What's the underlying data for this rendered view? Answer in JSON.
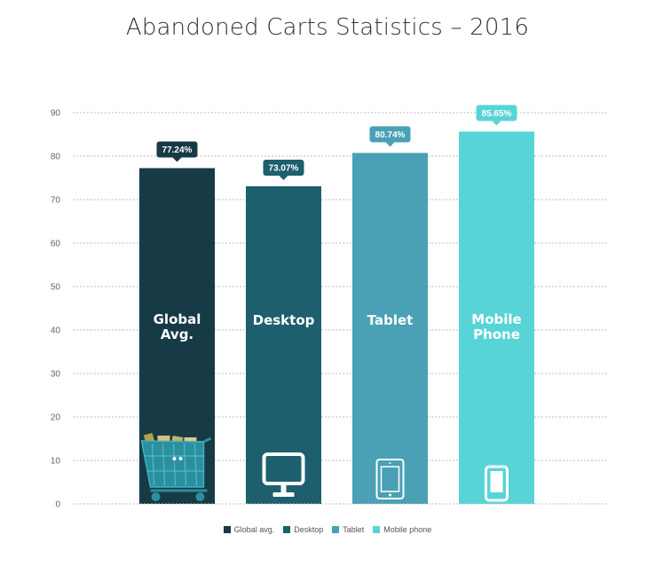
{
  "title": "Abandoned Carts Statistics – 2016",
  "chart_data": {
    "type": "bar",
    "title": "Abandoned Carts Statistics – 2016",
    "xlabel": "",
    "ylabel": "",
    "ylim": [
      0,
      90
    ],
    "yticks": [
      0,
      10,
      20,
      30,
      40,
      50,
      60,
      70,
      80,
      90
    ],
    "grid": true,
    "legend_position": "bottom",
    "categories": [
      "Global avg.",
      "Desktop",
      "Tablet",
      "Mobile phone"
    ],
    "bar_labels": [
      [
        "Global",
        "Avg."
      ],
      [
        "Desktop"
      ],
      [
        "Tablet"
      ],
      [
        "Mobile",
        "Phone"
      ]
    ],
    "values": [
      77.24,
      73.07,
      80.74,
      85.65
    ],
    "value_labels": [
      "77.24%",
      "73.07%",
      "80.74%",
      "85.65%"
    ],
    "colors": [
      "#163a46",
      "#1e5f6e",
      "#4aa0b5",
      "#59d4d6"
    ],
    "icons": [
      "shopping-cart-icon",
      "desktop-monitor-icon",
      "tablet-icon",
      "mobile-phone-icon"
    ]
  },
  "legend": [
    {
      "label": "Global avg.",
      "color": "#163a46"
    },
    {
      "label": "Desktop",
      "color": "#1e5f6e"
    },
    {
      "label": "Tablet",
      "color": "#4aa0b5"
    },
    {
      "label": "Mobile phone",
      "color": "#59d4d6"
    }
  ]
}
